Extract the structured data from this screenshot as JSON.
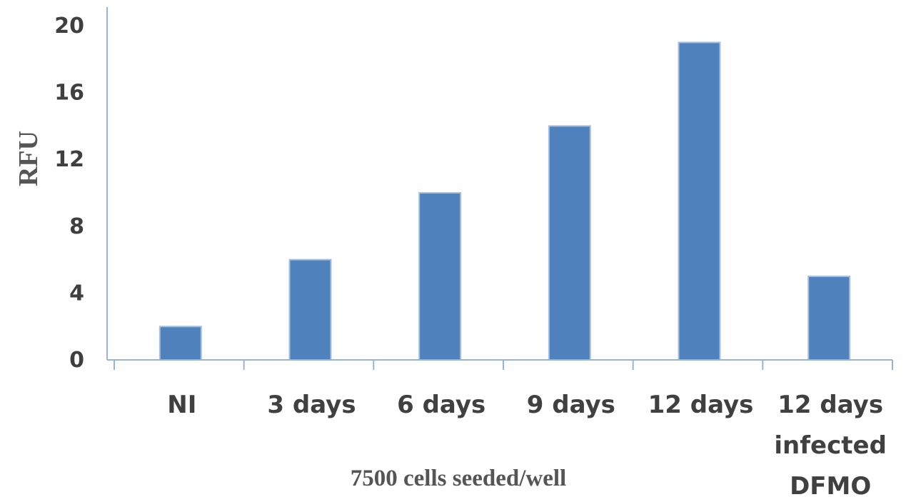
{
  "chart_data": {
    "type": "bar",
    "categories": [
      [
        "NI"
      ],
      [
        "3 days"
      ],
      [
        "6 days"
      ],
      [
        "9 days"
      ],
      [
        "12 days"
      ],
      [
        "12 days",
        "infected",
        "DFMO"
      ]
    ],
    "values": [
      2,
      6,
      10,
      14,
      19,
      5
    ],
    "ylim": [
      0,
      20
    ],
    "yticks": [
      0,
      4,
      8,
      12,
      16,
      20
    ],
    "ytick_labels": [
      "0",
      "4",
      "8",
      "12",
      "16",
      "20"
    ],
    "xlabel": "7500 cells seeded/well",
    "ylabel": "RFU",
    "grid": false,
    "legend": "none",
    "colors": {
      "bar": "#4f81bd",
      "bar_edge": "#a7c0e0",
      "axis": "#9ab3d3",
      "text": "#404040"
    }
  }
}
